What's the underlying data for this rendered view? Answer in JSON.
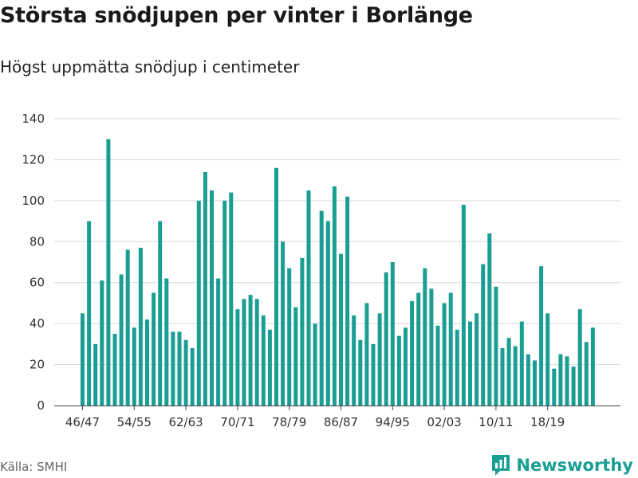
{
  "title": "Största snödjupen per vinter i Borlänge",
  "subtitle": "Högst uppmätta snödjup i centimeter",
  "source": "Källa: SMHI",
  "brand": {
    "name": "Newsworthy",
    "icon": "newsworthy-chart-logo-icon",
    "color": "#1b9e94"
  },
  "colors": {
    "bar": "#1a9e94",
    "grid": "#d9d9d9",
    "axis": "#444444"
  },
  "chart_data": {
    "type": "bar",
    "title": "Största snödjupen per vinter i Borlänge",
    "subtitle": "Högst uppmätta snödjup i centimeter",
    "xlabel": "",
    "ylabel": "",
    "ylim": [
      0,
      140
    ],
    "y_ticks": [
      0,
      20,
      40,
      60,
      80,
      100,
      120,
      140
    ],
    "grid": true,
    "legend": "none",
    "x_tick_labels": [
      "46/47",
      "54/55",
      "62/63",
      "70/71",
      "78/79",
      "86/87",
      "94/95",
      "02/03",
      "10/11",
      "18/19"
    ],
    "first_season_start_year": 1946,
    "values": [
      45,
      90,
      30,
      61,
      130,
      35,
      64,
      76,
      38,
      77,
      42,
      55,
      90,
      62,
      36,
      36,
      32,
      28,
      100,
      114,
      105,
      62,
      100,
      104,
      47,
      52,
      54,
      52,
      44,
      37,
      116,
      80,
      67,
      48,
      72,
      105,
      40,
      95,
      90,
      107,
      74,
      102,
      44,
      32,
      50,
      30,
      45,
      65,
      70,
      34,
      38,
      51,
      55,
      67,
      57,
      39,
      50,
      55,
      37,
      98,
      41,
      45,
      69,
      84,
      58,
      28,
      33,
      29,
      41,
      25,
      22,
      68,
      45,
      18,
      25,
      24,
      19,
      47,
      31,
      38
    ]
  }
}
